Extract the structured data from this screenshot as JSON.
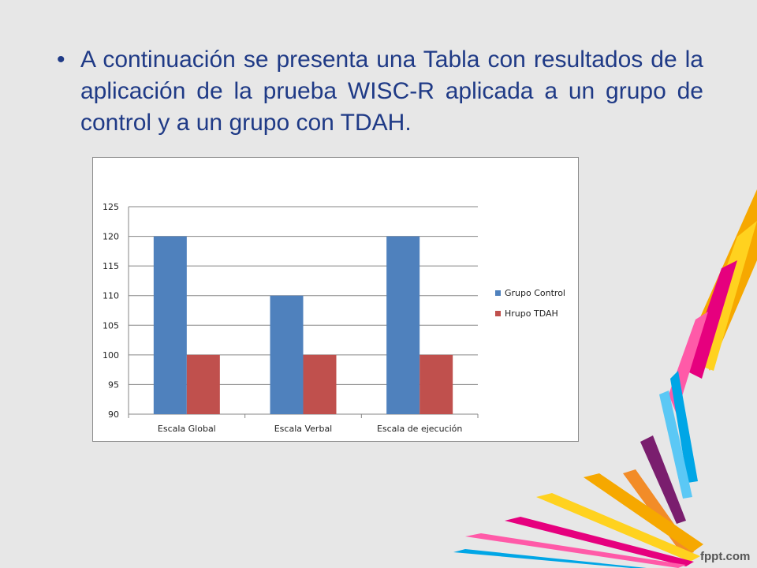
{
  "slide": {
    "bullet_symbol": "•",
    "bullet_text": "A continuación se presenta una Tabla con resultados de la aplicación de la prueba WISC-R aplicada a un grupo de control y a un grupo con TDAH.",
    "brand": "fppt.com"
  },
  "chart_data": {
    "type": "bar",
    "categories": [
      "Escala Global",
      "Escala Verbal",
      "Escala de ejecución"
    ],
    "series": [
      {
        "name": "Grupo Control",
        "values": [
          120,
          110,
          120
        ],
        "color": "#4f81bd"
      },
      {
        "name": "Hrupo TDAH",
        "values": [
          100,
          100,
          100
        ],
        "color": "#c0504d"
      }
    ],
    "ylim": [
      90,
      125
    ],
    "yticks": [
      "90",
      "95",
      "100",
      "105",
      "110",
      "115",
      "120",
      "125"
    ],
    "grid": true,
    "legend_position": "right",
    "title": "",
    "xlabel": "",
    "ylabel": ""
  },
  "colors": {
    "text": "#1f3a86",
    "background": "#e7e7e7",
    "deco": [
      "#f6a800",
      "#ffd21f",
      "#e6007e",
      "#ff5aa8",
      "#00a6e6",
      "#5bc8f5",
      "#7a1e6e",
      "#f28c28"
    ]
  }
}
